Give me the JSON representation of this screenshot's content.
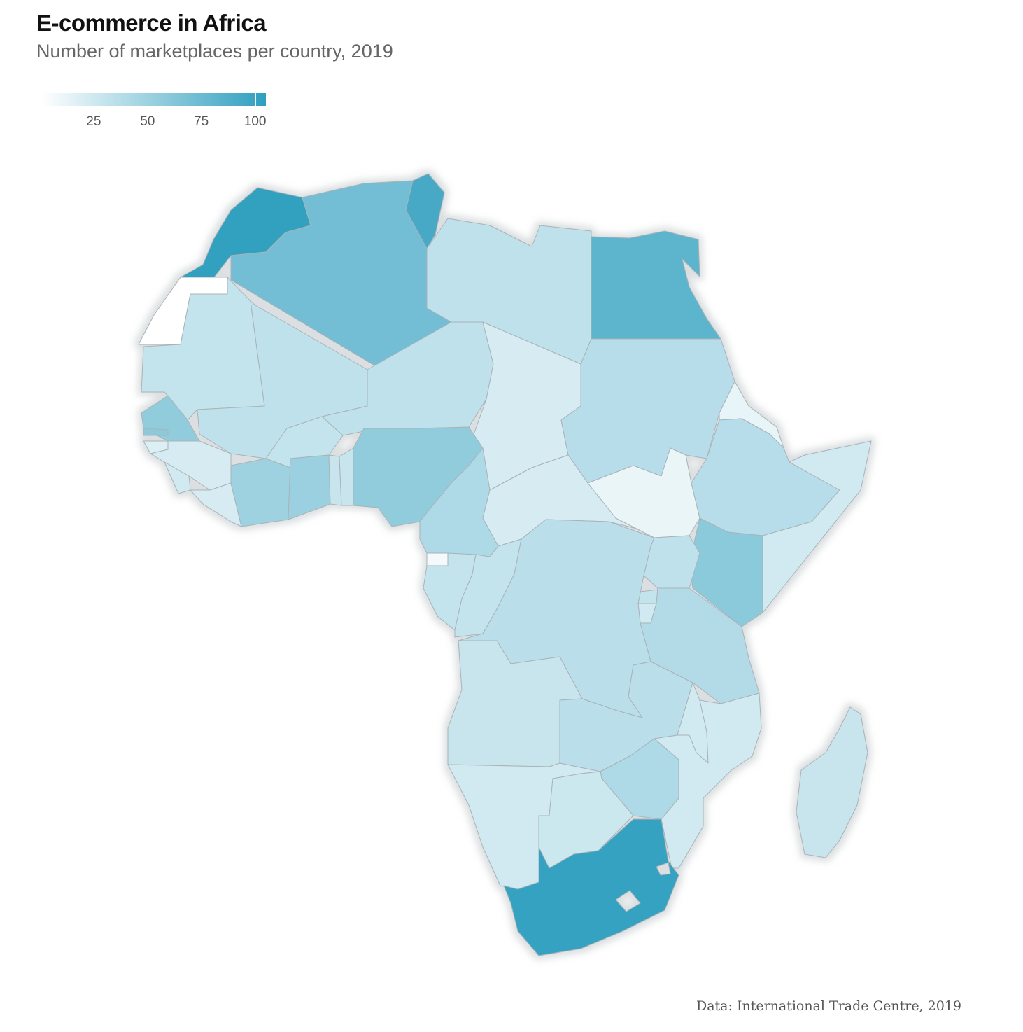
{
  "title": "E-commerce in Africa",
  "subtitle": "Number of marketplaces per country, 2019",
  "caption": "Data: International Trade Centre, 2019",
  "legend": {
    "ticks": [
      {
        "value": 25,
        "label": "25"
      },
      {
        "value": 50,
        "label": "50"
      },
      {
        "value": 75,
        "label": "75"
      },
      {
        "value": 100,
        "label": "100"
      }
    ],
    "min": 1,
    "max": 105,
    "low_color": "#ffffff",
    "high_color": "#2f9fbf"
  },
  "map_data": {
    "type": "choropleth",
    "region": "Africa",
    "countries": [
      {
        "id": "morocco",
        "value": 102
      },
      {
        "id": "western-sahara",
        "value": 0
      },
      {
        "id": "algeria",
        "value": 62
      },
      {
        "id": "tunisia",
        "value": 90
      },
      {
        "id": "libya",
        "value": 22
      },
      {
        "id": "egypt",
        "value": 75
      },
      {
        "id": "mauritania",
        "value": 20
      },
      {
        "id": "mali",
        "value": 22
      },
      {
        "id": "niger",
        "value": 22
      },
      {
        "id": "chad",
        "value": 12
      },
      {
        "id": "sudan",
        "value": 26
      },
      {
        "id": "eritrea",
        "value": 6
      },
      {
        "id": "senegal",
        "value": 45
      },
      {
        "id": "gambia",
        "value": 48
      },
      {
        "id": "guinea-bissau",
        "value": 10
      },
      {
        "id": "guinea",
        "value": 12
      },
      {
        "id": "sierra-leone",
        "value": 14
      },
      {
        "id": "liberia",
        "value": 12
      },
      {
        "id": "cote-divoire",
        "value": 38
      },
      {
        "id": "burkina-faso",
        "value": 20
      },
      {
        "id": "ghana",
        "value": 40
      },
      {
        "id": "togo",
        "value": 18
      },
      {
        "id": "benin",
        "value": 18
      },
      {
        "id": "nigeria",
        "value": 45
      },
      {
        "id": "cameroon",
        "value": 30
      },
      {
        "id": "central-african-republic",
        "value": 12
      },
      {
        "id": "south-sudan",
        "value": 5
      },
      {
        "id": "ethiopia",
        "value": 26
      },
      {
        "id": "somalia",
        "value": 14
      },
      {
        "id": "kenya",
        "value": 48
      },
      {
        "id": "uganda",
        "value": 22
      },
      {
        "id": "rwanda",
        "value": 20
      },
      {
        "id": "burundi",
        "value": 14
      },
      {
        "id": "tanzania",
        "value": 28
      },
      {
        "id": "equatorial-guinea",
        "value": 2
      },
      {
        "id": "gabon",
        "value": 20
      },
      {
        "id": "congo",
        "value": 20
      },
      {
        "id": "dr-congo",
        "value": 24
      },
      {
        "id": "angola",
        "value": 18
      },
      {
        "id": "zambia",
        "value": 24
      },
      {
        "id": "malawi",
        "value": 14
      },
      {
        "id": "mozambique",
        "value": 14
      },
      {
        "id": "zimbabwe",
        "value": 30
      },
      {
        "id": "namibia",
        "value": 14
      },
      {
        "id": "botswana",
        "value": 16
      },
      {
        "id": "south-africa",
        "value": 100
      },
      {
        "id": "madagascar",
        "value": 18
      }
    ]
  }
}
